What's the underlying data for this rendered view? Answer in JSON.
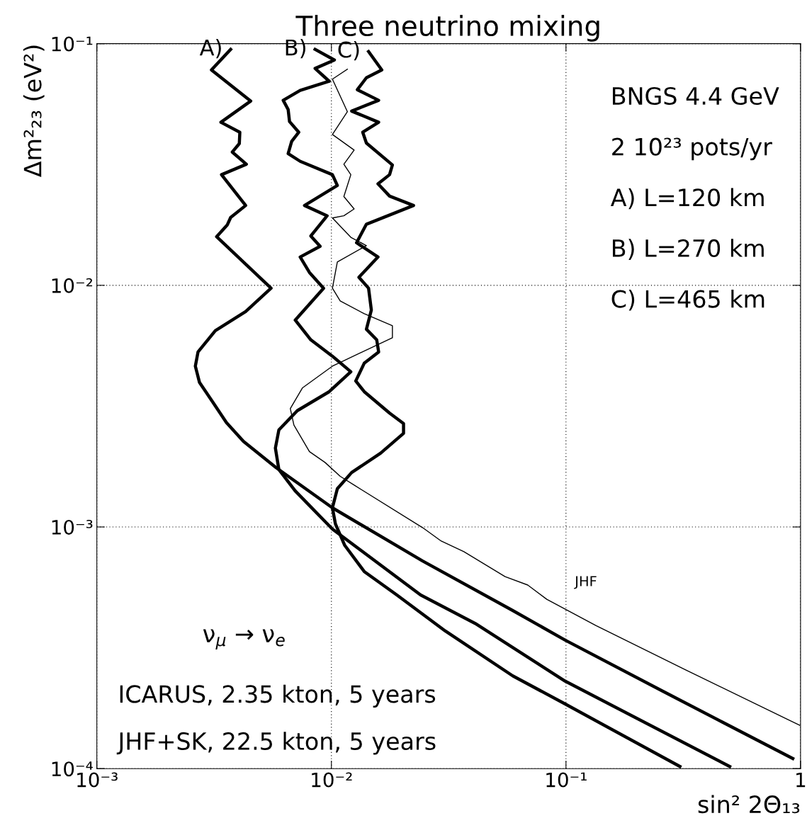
{
  "chart_data": {
    "type": "line",
    "title": "Three neutrino mixing",
    "xlabel": "sin² 2Θ₁₃",
    "ylabel": "Δm²₂₃ (eV²)",
    "log": "xy",
    "grid": true,
    "marker": "none",
    "line_style": "solid",
    "xlim": [
      0.001,
      1
    ],
    "ylim": [
      0.0001,
      0.1
    ],
    "xticks": [
      {
        "value": 0.001,
        "label": "10⁻³"
      },
      {
        "value": 0.01,
        "label": "10⁻²"
      },
      {
        "value": 0.1,
        "label": "10⁻¹"
      },
      1
    ],
    "yticks": [
      {
        "value": 0.0001,
        "label": "10⁻⁴"
      },
      {
        "value": 0.001,
        "label": "10⁻³"
      },
      {
        "value": 0.01,
        "label": "10⁻²"
      },
      {
        "value": 0.1,
        "label": "10⁻¹"
      }
    ],
    "annotations": [
      "BNGS 4.4 GeV",
      "2 10²³ pots/yr",
      "A) L=120 km",
      "B) L=270 km",
      "C) L=465 km",
      "ν$_{μ}$ → ν$_{e}$",
      "ICARUS, 2.35 kton, 5 years",
      "JHF+SK, 22.5 kton, 5 years"
    ],
    "series": [
      {
        "name": "A)",
        "color": "#000000",
        "x": [
          0.00372,
          0.00308,
          0.00453,
          0.00338,
          0.00407,
          0.00405,
          0.00378,
          0.00434,
          0.0034,
          0.00431,
          0.00372,
          0.0036,
          0.00324,
          0.00553,
          0.00431,
          0.0032,
          0.0027,
          0.00263,
          0.00274,
          0.00311,
          0.00357,
          0.00422,
          0.00581,
          0.0101,
          0.0245,
          0.0593,
          0.0993,
          0.259,
          0.927
        ],
        "values": [
          0.0947,
          0.0779,
          0.0579,
          0.0473,
          0.043,
          0.0386,
          0.0356,
          0.0317,
          0.0287,
          0.0214,
          0.0191,
          0.0178,
          0.0159,
          0.00973,
          0.00779,
          0.00649,
          0.0053,
          0.00463,
          0.00396,
          0.0033,
          0.0027,
          0.00226,
          0.00176,
          0.0012,
          0.000723,
          0.000451,
          0.00034,
          0.000209,
          0.00011
        ]
      },
      {
        "name": "B)",
        "color": "#000000",
        "x": [
          0.00852,
          0.0103,
          0.00852,
          0.00979,
          0.00736,
          0.00623,
          0.00654,
          0.00663,
          0.00726,
          0.00677,
          0.00654,
          0.00736,
          0.0101,
          0.0106,
          0.00768,
          0.00959,
          0.00817,
          0.00895,
          0.00736,
          0.00806,
          0.00926,
          0.00701,
          0.00817,
          0.0101,
          0.0121,
          0.00979,
          0.00716,
          0.00597,
          0.00577,
          0.00597,
          0.00701,
          0.0101,
          0.024,
          0.041,
          0.0993,
          0.499
        ],
        "values": [
          0.0947,
          0.0856,
          0.079,
          0.0699,
          0.0641,
          0.0583,
          0.0534,
          0.0476,
          0.043,
          0.0394,
          0.0351,
          0.0326,
          0.0287,
          0.0259,
          0.0214,
          0.0194,
          0.016,
          0.0145,
          0.0131,
          0.0113,
          0.00973,
          0.00718,
          0.00595,
          0.00509,
          0.00439,
          0.00363,
          0.00303,
          0.00252,
          0.00212,
          0.00173,
          0.00141,
          0.00098,
          0.000523,
          0.000399,
          0.00023,
          0.000102
        ]
      },
      {
        "name": "C)",
        "color": "#000000",
        "x": [
          0.0144,
          0.0164,
          0.0141,
          0.0129,
          0.0159,
          0.0122,
          0.0159,
          0.0136,
          0.0141,
          0.0182,
          0.0177,
          0.0158,
          0.0177,
          0.0224,
          0.0141,
          0.0128,
          0.0158,
          0.0131,
          0.0144,
          0.0148,
          0.0141,
          0.0156,
          0.0159,
          0.0138,
          0.0127,
          0.0138,
          0.0177,
          0.0203,
          0.0203,
          0.0162,
          0.0122,
          0.0106,
          0.0101,
          0.0104,
          0.0114,
          0.0138,
          0.019,
          0.0306,
          0.0593,
          0.0993,
          0.306
        ],
        "values": [
          0.0928,
          0.0779,
          0.0723,
          0.0645,
          0.0583,
          0.0526,
          0.0473,
          0.043,
          0.0388,
          0.0315,
          0.0287,
          0.0263,
          0.0234,
          0.0214,
          0.0179,
          0.015,
          0.0131,
          0.0108,
          0.00973,
          0.0079,
          0.00658,
          0.00595,
          0.0053,
          0.00476,
          0.00402,
          0.00363,
          0.00296,
          0.00268,
          0.00244,
          0.00202,
          0.00168,
          0.00144,
          0.0012,
          0.00103,
          0.000839,
          0.000654,
          0.000523,
          0.000371,
          0.000242,
          0.000185,
          0.000102
        ]
      },
      {
        "name": "JHF",
        "color": "#000000",
        "x": [
          0.0117,
          0.0101,
          0.0117,
          0.0101,
          0.0125,
          0.0113,
          0.0121,
          0.0113,
          0.0125,
          0.0113,
          0.0101,
          0.0121,
          0.0141,
          0.0106,
          0.0101,
          0.0109,
          0.0138,
          0.0182,
          0.0182,
          0.0101,
          0.00752,
          0.00668,
          0.00692,
          0.00806,
          0.00939,
          0.0109,
          0.0125,
          0.0245,
          0.0294,
          0.0367,
          0.055,
          0.0687,
          0.0828,
          0.134,
          0.324,
          0.993
        ],
        "values": [
          0.0784,
          0.0713,
          0.0523,
          0.0421,
          0.0363,
          0.0317,
          0.0287,
          0.0233,
          0.0207,
          0.0194,
          0.019,
          0.0158,
          0.0146,
          0.0125,
          0.00973,
          0.00862,
          0.00763,
          0.00681,
          0.00607,
          0.00463,
          0.00376,
          0.00309,
          0.00264,
          0.00205,
          0.00185,
          0.00162,
          0.00149,
          0.000993,
          0.000874,
          0.00079,
          0.000623,
          0.000575,
          0.000502,
          0.000391,
          0.000256,
          0.000151
        ]
      }
    ]
  }
}
